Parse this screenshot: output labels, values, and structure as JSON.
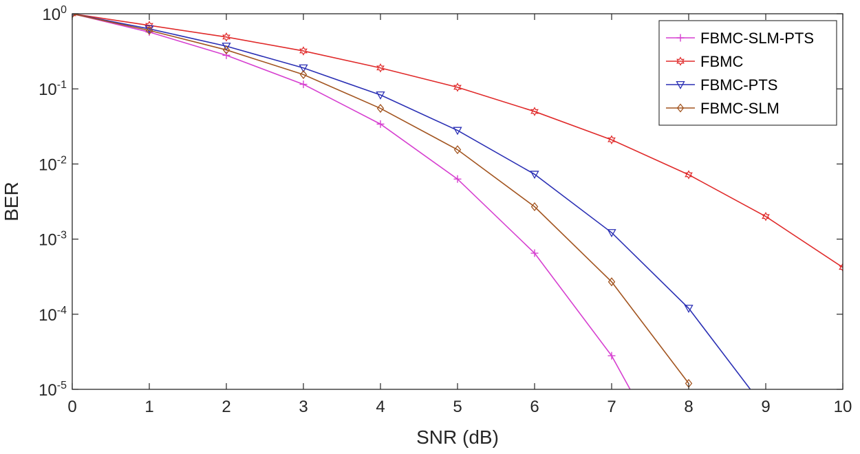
{
  "chart_data": {
    "type": "line",
    "xlabel": "SNR (dB)",
    "ylabel": "BER",
    "xlim": [
      0,
      10
    ],
    "ylim": [
      1e-05,
      1
    ],
    "yscale": "log",
    "grid": false,
    "legend_position": "top-right",
    "x_ticks": [
      "0",
      "1",
      "2",
      "3",
      "4",
      "5",
      "6",
      "7",
      "8",
      "9",
      "10"
    ],
    "y_ticks": [
      {
        "base": "10",
        "exp": "0"
      },
      {
        "base": "10",
        "exp": "-1"
      },
      {
        "base": "10",
        "exp": "-2"
      },
      {
        "base": "10",
        "exp": "-3"
      },
      {
        "base": "10",
        "exp": "-4"
      },
      {
        "base": "10",
        "exp": "-5"
      }
    ],
    "series": [
      {
        "name": "FBMC-SLM-PTS",
        "color": "#d63fd0",
        "marker": "plus",
        "x": [
          0,
          1,
          2,
          3,
          4,
          5,
          6,
          7,
          7.24
        ],
        "y": [
          1.0,
          0.57,
          0.28,
          0.115,
          0.034,
          0.0063,
          0.00065,
          2.8e-05,
          1e-05
        ]
      },
      {
        "name": "FBMC",
        "color": "#e02a2a",
        "marker": "hexagram",
        "x": [
          0,
          1,
          2,
          3,
          4,
          5,
          6,
          7,
          8,
          9,
          10
        ],
        "y": [
          1.0,
          0.7,
          0.49,
          0.32,
          0.19,
          0.105,
          0.05,
          0.021,
          0.0072,
          0.002,
          0.00042
        ]
      },
      {
        "name": "FBMC-PTS",
        "color": "#2a2fb4",
        "marker": "triangle-down",
        "x": [
          0,
          1,
          2,
          3,
          4,
          5,
          6,
          7,
          8,
          8.8
        ],
        "y": [
          1.0,
          0.63,
          0.37,
          0.19,
          0.083,
          0.028,
          0.0073,
          0.00122,
          0.00012,
          1e-05
        ]
      },
      {
        "name": "FBMC-SLM",
        "color": "#a2541f",
        "marker": "diamond",
        "x": [
          0,
          1,
          2,
          3,
          4,
          5,
          6,
          7,
          8
        ],
        "y": [
          1.0,
          0.6,
          0.33,
          0.155,
          0.055,
          0.0155,
          0.0027,
          0.00027,
          1.2e-05
        ]
      }
    ]
  }
}
